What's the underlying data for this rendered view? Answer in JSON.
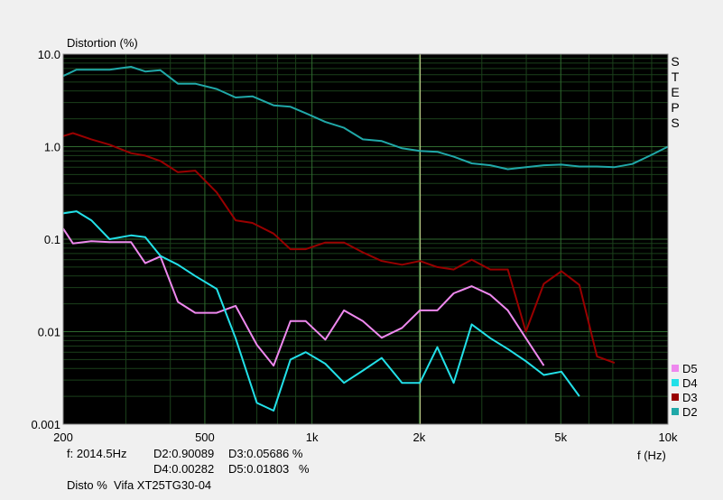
{
  "chart_data": {
    "type": "line",
    "title": "Distortion (%)",
    "xlabel": "f (Hz)",
    "x_scale": "log",
    "y_scale": "log",
    "xlim": [
      200,
      10000
    ],
    "ylim": [
      0.001,
      10
    ],
    "x_tick_labels": [
      {
        "value": 200,
        "label": "200"
      },
      {
        "value": 500,
        "label": "500"
      },
      {
        "value": 1000,
        "label": "1k"
      },
      {
        "value": 2000,
        "label": "2k"
      },
      {
        "value": 5000,
        "label": "5k"
      },
      {
        "value": 10000,
        "label": "10k"
      }
    ],
    "y_tick_labels": [
      {
        "value": 10,
        "label": "10.0"
      },
      {
        "value": 1,
        "label": "1.0"
      },
      {
        "value": 0.1,
        "label": "0.1"
      },
      {
        "value": 0.01,
        "label": "0.01"
      },
      {
        "value": 0.001,
        "label": "0.001"
      }
    ],
    "cursor_x": 2014.5,
    "grid": true,
    "side_label": "STEPS",
    "legend_position": "bottom-right",
    "series": [
      {
        "name": "D5",
        "color": "#ee88ee",
        "points": [
          [
            200,
            0.13
          ],
          [
            213,
            0.09
          ],
          [
            240,
            0.095
          ],
          [
            270,
            0.093
          ],
          [
            310,
            0.093
          ],
          [
            340,
            0.055
          ],
          [
            375,
            0.065
          ],
          [
            420,
            0.021
          ],
          [
            470,
            0.016
          ],
          [
            540,
            0.016
          ],
          [
            610,
            0.019
          ],
          [
            700,
            0.0072
          ],
          [
            780,
            0.0043
          ],
          [
            870,
            0.013
          ],
          [
            960,
            0.013
          ],
          [
            1090,
            0.0082
          ],
          [
            1230,
            0.017
          ],
          [
            1390,
            0.013
          ],
          [
            1570,
            0.0086
          ],
          [
            1790,
            0.011
          ],
          [
            2010,
            0.017
          ],
          [
            2250,
            0.017
          ],
          [
            2500,
            0.026
          ],
          [
            2810,
            0.031
          ],
          [
            3170,
            0.025
          ],
          [
            3550,
            0.017
          ],
          [
            3990,
            0.0085
          ],
          [
            4480,
            0.0043
          ]
        ]
      },
      {
        "name": "D4",
        "color": "#22e0e8",
        "points": [
          [
            200,
            0.19
          ],
          [
            218,
            0.2
          ],
          [
            240,
            0.16
          ],
          [
            270,
            0.1
          ],
          [
            310,
            0.11
          ],
          [
            340,
            0.105
          ],
          [
            375,
            0.066
          ],
          [
            420,
            0.053
          ],
          [
            470,
            0.04
          ],
          [
            540,
            0.029
          ],
          [
            610,
            0.0085
          ],
          [
            700,
            0.0017
          ],
          [
            780,
            0.0014
          ],
          [
            870,
            0.005
          ],
          [
            960,
            0.006
          ],
          [
            1090,
            0.0045
          ],
          [
            1230,
            0.0028
          ],
          [
            1390,
            0.0038
          ],
          [
            1570,
            0.0052
          ],
          [
            1790,
            0.0028
          ],
          [
            2010,
            0.0028
          ],
          [
            2250,
            0.0068
          ],
          [
            2500,
            0.0028
          ],
          [
            2810,
            0.012
          ],
          [
            3170,
            0.0085
          ],
          [
            3550,
            0.0065
          ],
          [
            3990,
            0.0048
          ],
          [
            4480,
            0.0034
          ],
          [
            5020,
            0.0037
          ],
          [
            5640,
            0.002
          ]
        ]
      },
      {
        "name": "D3",
        "color": "#990000",
        "points": [
          [
            200,
            1.3
          ],
          [
            213,
            1.4
          ],
          [
            240,
            1.2
          ],
          [
            270,
            1.05
          ],
          [
            310,
            0.85
          ],
          [
            340,
            0.8
          ],
          [
            375,
            0.7
          ],
          [
            420,
            0.53
          ],
          [
            470,
            0.55
          ],
          [
            540,
            0.32
          ],
          [
            610,
            0.16
          ],
          [
            680,
            0.15
          ],
          [
            780,
            0.115
          ],
          [
            870,
            0.078
          ],
          [
            960,
            0.078
          ],
          [
            1090,
            0.092
          ],
          [
            1230,
            0.092
          ],
          [
            1390,
            0.072
          ],
          [
            1570,
            0.058
          ],
          [
            1790,
            0.053
          ],
          [
            2010,
            0.058
          ],
          [
            2250,
            0.05
          ],
          [
            2500,
            0.047
          ],
          [
            2810,
            0.06
          ],
          [
            3170,
            0.047
          ],
          [
            3550,
            0.047
          ],
          [
            3990,
            0.01
          ],
          [
            4480,
            0.033
          ],
          [
            5020,
            0.045
          ],
          [
            5640,
            0.032
          ],
          [
            6320,
            0.0054
          ],
          [
            7080,
            0.0046
          ]
        ]
      },
      {
        "name": "D2",
        "color": "#20a8a8",
        "points": [
          [
            200,
            5.8
          ],
          [
            218,
            6.8
          ],
          [
            240,
            6.8
          ],
          [
            270,
            6.8
          ],
          [
            310,
            7.3
          ],
          [
            340,
            6.5
          ],
          [
            375,
            6.7
          ],
          [
            420,
            4.8
          ],
          [
            470,
            4.8
          ],
          [
            540,
            4.2
          ],
          [
            610,
            3.4
          ],
          [
            680,
            3.5
          ],
          [
            780,
            2.8
          ],
          [
            870,
            2.7
          ],
          [
            960,
            2.3
          ],
          [
            1090,
            1.85
          ],
          [
            1230,
            1.6
          ],
          [
            1390,
            1.2
          ],
          [
            1570,
            1.15
          ],
          [
            1790,
            0.96
          ],
          [
            2010,
            0.9
          ],
          [
            2250,
            0.88
          ],
          [
            2500,
            0.78
          ],
          [
            2810,
            0.66
          ],
          [
            3170,
            0.63
          ],
          [
            3550,
            0.57
          ],
          [
            3990,
            0.6
          ],
          [
            4480,
            0.63
          ],
          [
            5020,
            0.64
          ],
          [
            5640,
            0.61
          ],
          [
            6320,
            0.61
          ],
          [
            7080,
            0.6
          ],
          [
            7940,
            0.65
          ],
          [
            8910,
            0.8
          ],
          [
            10000,
            1.0
          ]
        ]
      }
    ]
  },
  "readout": {
    "line1_freq": "f: 2014.5Hz",
    "line1_d2": "D2:0.90089",
    "line1_d3": "D3:0.05686 %",
    "line2_d4": "D4:0.00282",
    "line2_d5": "D5:0.01803   %",
    "caption": "Disto %  Vifa XT25TG30-04"
  }
}
